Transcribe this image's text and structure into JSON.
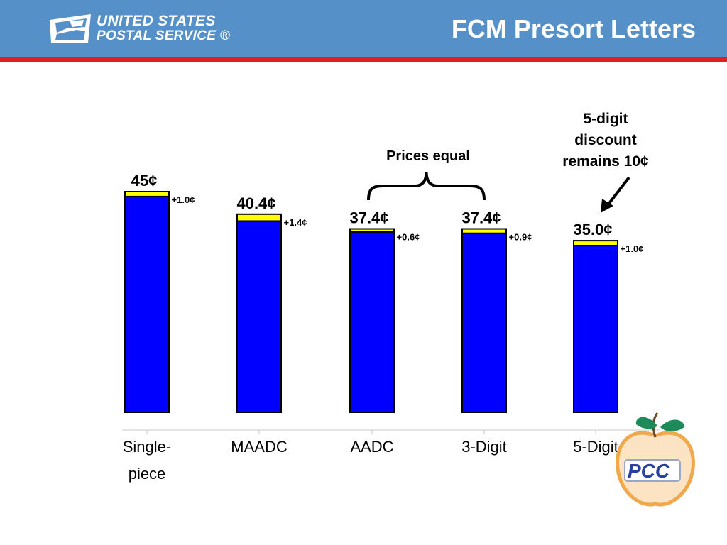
{
  "header": {
    "logo_line1": "UNITED STATES",
    "logo_line2": "POSTAL SERVICE ®",
    "title": "FCM Presort Letters",
    "background_color": "#5591c8",
    "stripe_color": "#e0201f"
  },
  "pcc_logo": {
    "label": "PCC",
    "icon": "peach-logo-icon"
  },
  "chart_data": {
    "type": "bar",
    "stacked": true,
    "categories": [
      {
        "line1": "Single-",
        "line2": "piece"
      },
      {
        "line1": "MAADC",
        "line2": ""
      },
      {
        "line1": "AADC",
        "line2": ""
      },
      {
        "line1": "3-Digit",
        "line2": ""
      },
      {
        "line1": "5-Digit",
        "line2": ""
      }
    ],
    "series": [
      {
        "values": [
          44.0,
          39.0,
          36.8,
          36.5,
          34.0
        ],
        "color": "#0000ff"
      },
      {
        "values": [
          1.0,
          1.4,
          0.6,
          0.9,
          1.0
        ],
        "color": "#ffff00"
      }
    ],
    "total_labels": [
      "45¢",
      "40.4¢",
      "37.4¢",
      "37.4¢",
      "35.0¢"
    ],
    "increase_labels": [
      "+1.0¢",
      "+1.4¢",
      "+0.6¢",
      "+0.9¢",
      "+1.0¢"
    ],
    "ylim": [
      0,
      45
    ],
    "grid": false,
    "annotations": {
      "prices_equal": "Prices equal",
      "discount_note": [
        "5-digit",
        "discount",
        "remains 10¢"
      ]
    }
  }
}
